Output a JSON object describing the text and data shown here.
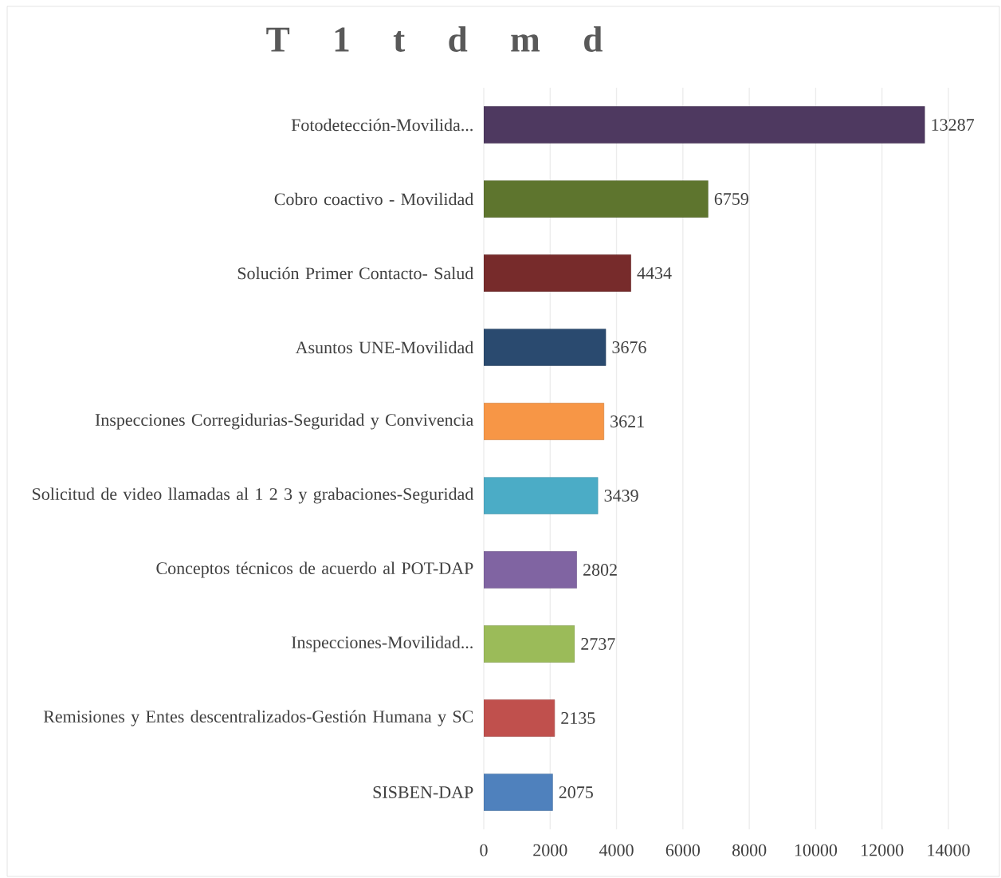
{
  "chart_data": {
    "type": "bar",
    "orientation": "horizontal",
    "title": "T 1 t d m d",
    "categories": [
      "Fotodetección-Movilida...",
      "Cobro coactivo - Movilidad",
      "Solución Primer Contacto- Salud",
      "Asuntos UNE-Movilidad",
      "Inspecciones Corregidurias-Seguridad y Convivencia",
      "Solicitud de video llamadas al 1 2 3 y grabaciones-Seguridad",
      "Conceptos técnicos de acuerdo al POT-DAP",
      "Inspecciones-Movilidad...",
      "Remisiones y Entes descentralizados-Gestión Humana y SC",
      "SISBEN-DAP"
    ],
    "values": [
      13287,
      6759,
      4434,
      3676,
      3621,
      3439,
      2802,
      2737,
      2135,
      2075
    ],
    "colors": [
      "#4e3960",
      "#5e752e",
      "#772b2b",
      "#2a4a6f",
      "#f79646",
      "#4bacc6",
      "#8064a2",
      "#9bbb59",
      "#c0504d",
      "#4f81bd"
    ],
    "xlim": [
      0,
      14000
    ],
    "xticks": [
      0,
      2000,
      4000,
      6000,
      8000,
      10000,
      12000,
      14000
    ],
    "grid": "x",
    "data_labels": true
  }
}
